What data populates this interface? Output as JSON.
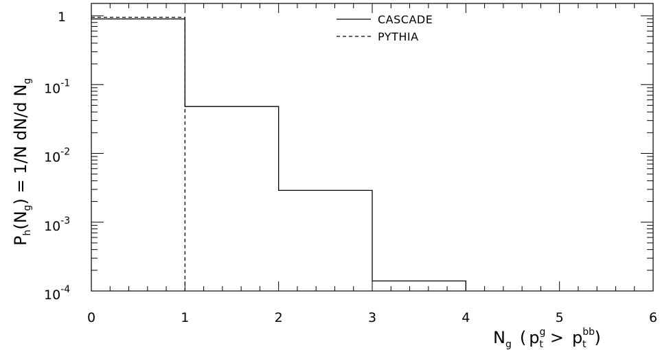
{
  "chart_data": {
    "type": "line",
    "title": "",
    "xlabel": {
      "main": "N",
      "main_sub": "g",
      "open": "(",
      "p1": "p",
      "p1_sup": "g",
      "p1_sub": "t",
      "op": ">",
      "p2": "p",
      "p2_sup": "bb",
      "p2_sub": "t",
      "close": ")"
    },
    "ylabel": {
      "P": "P",
      "P_sub": "h",
      "N": "(N",
      "N_sub": "g",
      "rest": ") = 1/N dN/d N",
      "rest_sub": "g"
    },
    "xlim": [
      0,
      6
    ],
    "ylim": [
      0.0001,
      1.5
    ],
    "y_scale": "log",
    "grid": false,
    "legend_position": "top-center",
    "x_ticks": [
      {
        "value": 0,
        "label": "0"
      },
      {
        "value": 1,
        "label": "1"
      },
      {
        "value": 2,
        "label": "2"
      },
      {
        "value": 3,
        "label": "3"
      },
      {
        "value": 4,
        "label": "4"
      },
      {
        "value": 5,
        "label": "5"
      },
      {
        "value": 6,
        "label": "6"
      }
    ],
    "y_ticks": [
      {
        "value": 1,
        "base": "1",
        "exp": ""
      },
      {
        "value": 0.1,
        "base": "10",
        "exp": "-1"
      },
      {
        "value": 0.01,
        "base": "10",
        "exp": "-2"
      },
      {
        "value": 0.001,
        "base": "10",
        "exp": "-3"
      },
      {
        "value": 0.0001,
        "base": "10",
        "exp": "-4"
      }
    ],
    "series": [
      {
        "name": "CASCADE",
        "style": "solid",
        "bin_edges": [
          0,
          1,
          2,
          3,
          4
        ],
        "values": [
          0.9,
          0.048,
          0.0029,
          0.00014
        ]
      },
      {
        "name": "PYTHIA",
        "style": "dashed",
        "bin_edges": [
          0,
          1
        ],
        "values": [
          0.95
        ]
      }
    ]
  }
}
